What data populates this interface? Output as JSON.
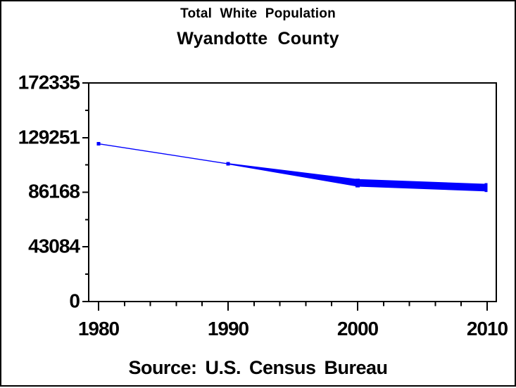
{
  "titles": {
    "line1": "Total White Population",
    "line2": "Wyandotte County"
  },
  "footnote": "Source: U.S. Census Bureau",
  "colors": {
    "line": "#0000FF",
    "text": "#000000",
    "frame": "#000000",
    "background": "#FFFFFF"
  },
  "chart_data": {
    "type": "line",
    "title": "Total White Population",
    "subtitle": "Wyandotte County",
    "source": "Source: U.S. Census Bureau",
    "x": [
      1980,
      1990,
      2000,
      2010
    ],
    "values": [
      124400,
      108600,
      93600,
      89800
    ],
    "xlabel": "",
    "ylabel": "",
    "x_ticks": [
      1980,
      1990,
      2000,
      2010
    ],
    "x_minor_tick_step_years": 2,
    "y_ticks": [
      0,
      43084,
      86168,
      129251,
      172335
    ],
    "y_minor_ticks": [
      21542,
      64626,
      107710,
      150793
    ],
    "ylim": [
      0,
      172335
    ],
    "xlim_years": [
      1979.25,
      2010.7
    ],
    "grid": false,
    "legend": false,
    "line_color": "#0000FF",
    "marker": "filled-square",
    "line_style": "line thickens progressively from 1990 through 2010",
    "band": {
      "x": [
        1990,
        2000,
        2010
      ],
      "upper": [
        108850,
        96300,
        92500
      ],
      "lower": [
        108350,
        90900,
        87100
      ]
    },
    "end_cap": {
      "x": 2010,
      "upper": 93350,
      "lower": 86350
    }
  }
}
